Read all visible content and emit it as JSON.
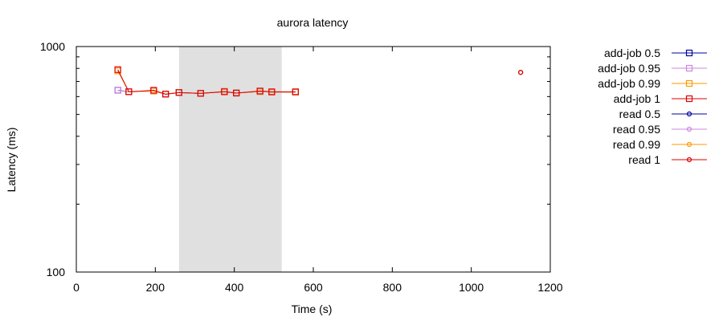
{
  "chart_data": {
    "type": "line",
    "title": "aurora latency",
    "xlabel": "Time (s)",
    "ylabel": "Latency (ms)",
    "xlim": [
      0,
      1200
    ],
    "ylim": [
      100,
      1000
    ],
    "yscale": "log",
    "x_ticks": [
      0,
      200,
      400,
      600,
      800,
      1000,
      1200
    ],
    "y_ticks": [
      100,
      1000
    ],
    "shaded_region": {
      "x": [
        260,
        520
      ],
      "color": "#e0e0e0"
    },
    "legend_position": "outside-right",
    "series": [
      {
        "name": "add-job 0.5",
        "color": "#0000a0",
        "marker": "square",
        "x": [
          105,
          133,
          196,
          226,
          260,
          315,
          375,
          405,
          465,
          495,
          555
        ],
        "y": [
          640,
          630,
          635,
          615,
          625,
          620,
          632,
          622,
          632,
          628,
          628
        ]
      },
      {
        "name": "add-job 0.95",
        "color": "#cc88dd",
        "marker": "square",
        "x": [
          105,
          133,
          196,
          226,
          260,
          315,
          375,
          405,
          465,
          495,
          555
        ],
        "y": [
          640,
          630,
          635,
          615,
          625,
          620,
          632,
          622,
          632,
          628,
          628
        ]
      },
      {
        "name": "add-job 0.99",
        "color": "#ff9900",
        "marker": "square",
        "x": [
          105,
          133,
          196,
          226,
          260,
          315,
          375,
          405,
          465,
          495,
          555
        ],
        "y": [
          780,
          630,
          635,
          615,
          625,
          620,
          632,
          622,
          632,
          628,
          628
        ]
      },
      {
        "name": "add-job 1",
        "color": "#dd0000",
        "marker": "square",
        "x": [
          105,
          133,
          196,
          226,
          260,
          315,
          375,
          405,
          465,
          495,
          555
        ],
        "y": [
          790,
          630,
          640,
          615,
          625,
          620,
          630,
          622,
          635,
          630,
          630
        ]
      },
      {
        "name": "read 0.5",
        "color": "#0000a0",
        "marker": "circle",
        "x": [
          1125
        ],
        "y": [
          768
        ]
      },
      {
        "name": "read 0.95",
        "color": "#cc88dd",
        "marker": "circle",
        "x": [
          1125
        ],
        "y": [
          768
        ]
      },
      {
        "name": "read 0.99",
        "color": "#ff9900",
        "marker": "circle",
        "x": [
          1125
        ],
        "y": [
          768
        ]
      },
      {
        "name": "read 1",
        "color": "#dd0000",
        "marker": "circle",
        "x": [
          1125
        ],
        "y": [
          768
        ]
      }
    ]
  }
}
